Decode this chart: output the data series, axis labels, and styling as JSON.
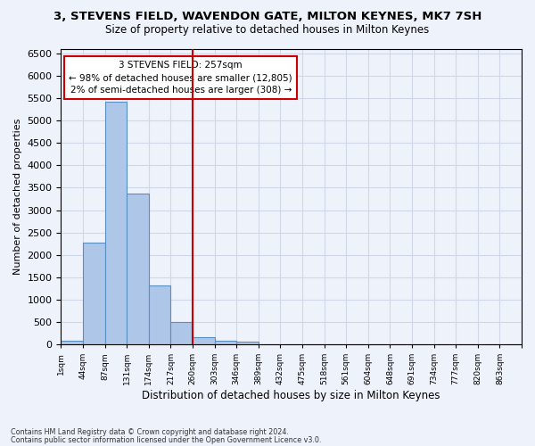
{
  "title1": "3, STEVENS FIELD, WAVENDON GATE, MILTON KEYNES, MK7 7SH",
  "title2": "Size of property relative to detached houses in Milton Keynes",
  "xlabel": "Distribution of detached houses by size in Milton Keynes",
  "ylabel": "Number of detached properties",
  "footnote1": "Contains HM Land Registry data © Crown copyright and database right 2024.",
  "footnote2": "Contains public sector information licensed under the Open Government Licence v3.0.",
  "bin_labels": [
    "1sqm",
    "44sqm",
    "87sqm",
    "131sqm",
    "174sqm",
    "217sqm",
    "260sqm",
    "303sqm",
    "346sqm",
    "389sqm",
    "432sqm",
    "475sqm",
    "518sqm",
    "561sqm",
    "604sqm",
    "648sqm",
    "691sqm",
    "734sqm",
    "777sqm",
    "820sqm",
    "863sqm"
  ],
  "bar_values": [
    75,
    2280,
    5420,
    3380,
    1310,
    490,
    160,
    90,
    55,
    0,
    0,
    0,
    0,
    0,
    0,
    0,
    0,
    0,
    0,
    0,
    0
  ],
  "bar_color": "#aec6e8",
  "bar_edge_color": "#5a8fc2",
  "grid_color": "#d0d8e8",
  "vline_x": 6.0,
  "vline_color": "#cc0000",
  "annotation_text": "3 STEVENS FIELD: 257sqm\n← 98% of detached houses are smaller (12,805)\n2% of semi-detached houses are larger (308) →",
  "annotation_box_color": "#ffffff",
  "annotation_box_edge": "#cc0000",
  "ylim": [
    0,
    6600
  ],
  "yticks": [
    0,
    500,
    1000,
    1500,
    2000,
    2500,
    3000,
    3500,
    4000,
    4500,
    5000,
    5500,
    6000,
    6500
  ],
  "background_color": "#eef2fb"
}
